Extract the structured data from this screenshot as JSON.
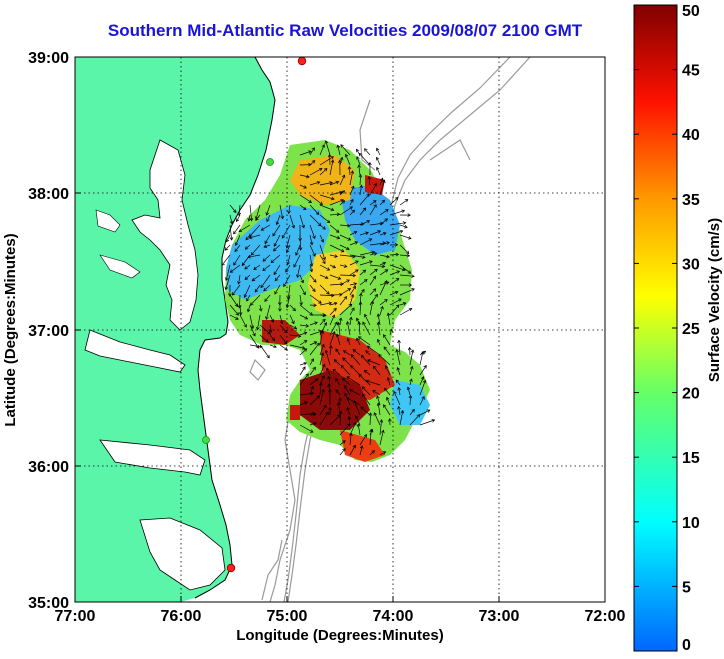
{
  "title": "Southern Mid-Atlantic Raw Velocities 2009/08/07 2100 GMT",
  "x_axis": {
    "label": "Longitude (Degrees:Minutes)",
    "ticks": [
      "77:00",
      "76:00",
      "75:00",
      "74:00",
      "73:00",
      "72:00"
    ]
  },
  "y_axis": {
    "label": "Latitude (Degrees:Minutes)",
    "ticks": [
      "39:00",
      "38:00",
      "37:00",
      "36:00",
      "35:00"
    ]
  },
  "colorbar": {
    "label": "Surface Velocity (cm/s)",
    "ticks": [
      "0",
      "5",
      "10",
      "15",
      "20",
      "25",
      "30",
      "35",
      "40",
      "45",
      "50"
    ],
    "min": 0,
    "max": 50,
    "colormap": "jet"
  },
  "colors": {
    "title": "#1a14d8",
    "land": "#5af5a9",
    "coast": "#000000",
    "bathymetry": "#9a9a9a",
    "station": "#ff2020"
  },
  "map": {
    "lon_range": [
      -77,
      -72
    ],
    "lat_range": [
      35,
      39
    ],
    "grid": "dotted",
    "stations": [
      "green",
      "green",
      "red",
      "red"
    ]
  }
}
